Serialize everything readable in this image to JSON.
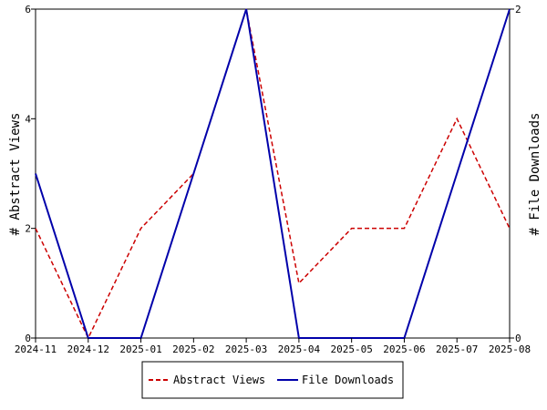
{
  "chart_data": {
    "type": "line",
    "categories": [
      "2024-11",
      "2024-12",
      "2025-01",
      "2025-02",
      "2025-03",
      "2025-04",
      "2025-05",
      "2025-06",
      "2025-07",
      "2025-08"
    ],
    "y_left": {
      "label": "# Abstract Views",
      "ylim": [
        0,
        6
      ],
      "ticks": [
        "0",
        "2",
        "4",
        "6"
      ]
    },
    "y_right": {
      "label": "# File Downloads",
      "ylim": [
        0,
        2
      ],
      "ticks": [
        "0",
        "2"
      ]
    },
    "series": [
      {
        "name": "Abstract Views",
        "axis": "left",
        "color": "#cc0000",
        "dash": "dashed",
        "values": [
          2,
          0,
          2,
          3,
          6,
          1,
          2,
          2,
          4,
          2
        ]
      },
      {
        "name": "File Downloads",
        "axis": "right",
        "color": "#0000aa",
        "dash": "solid",
        "values": [
          1,
          0,
          0,
          1,
          2,
          0,
          0,
          0,
          1,
          2
        ]
      }
    ],
    "grid": false,
    "legend_position": "bottom"
  }
}
